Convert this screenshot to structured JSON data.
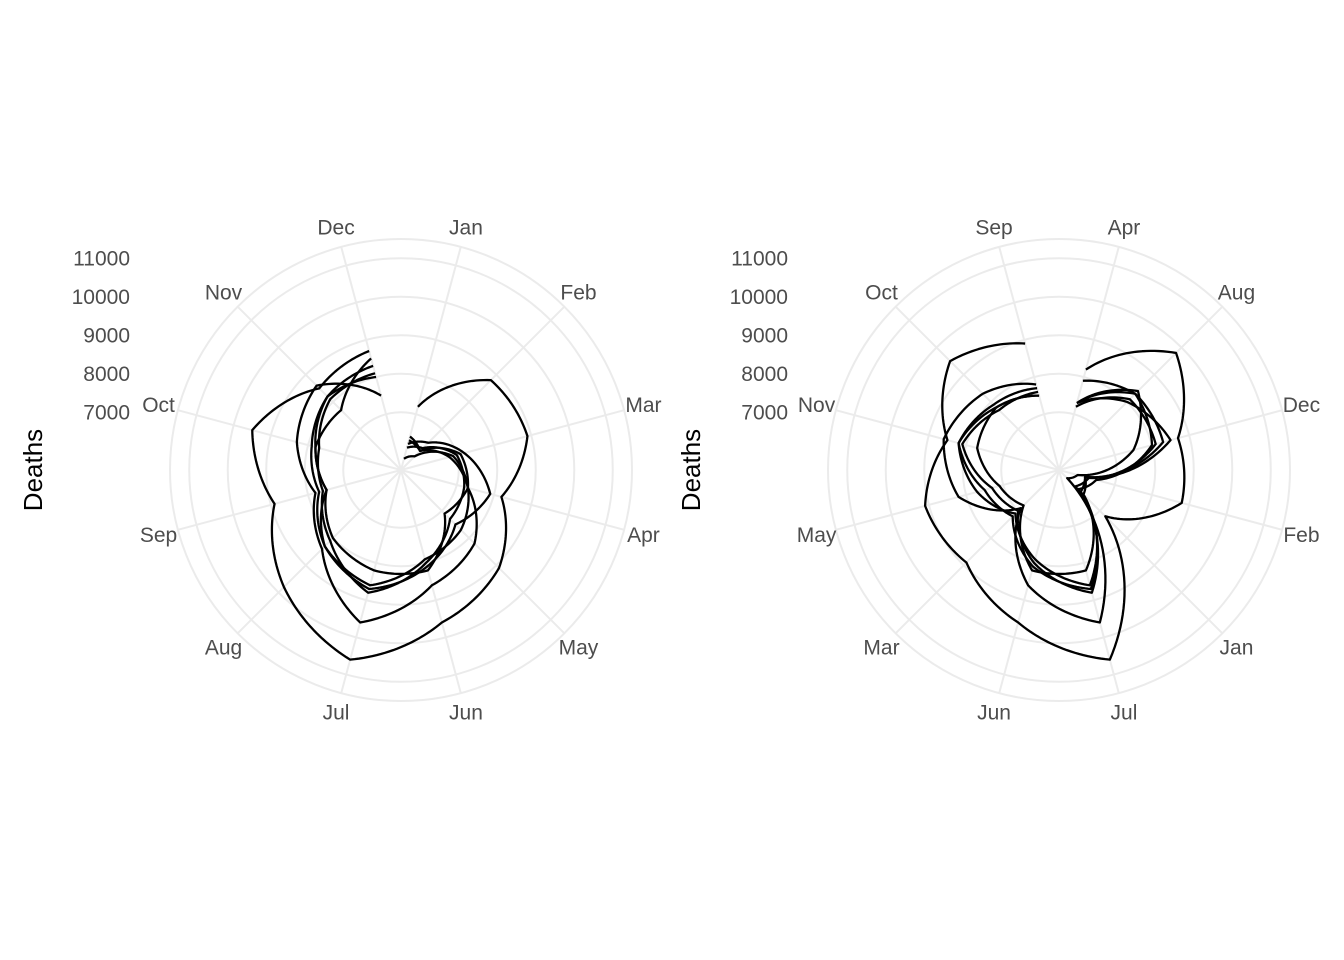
{
  "chart_data": [
    {
      "type": "line",
      "coord": "polar",
      "ylabel": "Deaths",
      "y_ticks": [
        7000,
        8000,
        9000,
        10000,
        11000
      ],
      "ylim": [
        5500,
        11500
      ],
      "theta_labels": [
        "Jan",
        "Feb",
        "Mar",
        "Apr",
        "May",
        "Jun",
        "Jul",
        "Aug",
        "Sep",
        "Oct",
        "Nov",
        "Dec"
      ],
      "grid": true,
      "series": [
        {
          "values": [
            5800,
            6000,
            6900,
            7300,
            8200,
            8600,
            9600,
            8400,
            7800,
            8300,
            8600,
            7500
          ]
        },
        {
          "values": [
            6200,
            6500,
            7200,
            7900,
            7500,
            8100,
            8700,
            8300,
            7500,
            7800,
            8200,
            8000
          ]
        },
        {
          "values": [
            6100,
            6300,
            7000,
            7200,
            7300,
            8000,
            8800,
            8100,
            7600,
            7700,
            8100,
            8100
          ]
        },
        {
          "values": [
            6300,
            6200,
            7100,
            7300,
            7700,
            7900,
            8600,
            8300,
            7700,
            7900,
            8200,
            8300
          ]
        },
        {
          "values": [
            6400,
            6200,
            6800,
            7300,
            7100,
            8200,
            8200,
            8000,
            7500,
            7800,
            7700,
            8500
          ]
        },
        {
          "values": [
            7200,
            8800,
            8900,
            8200,
            9100,
            9600,
            10600,
            9800,
            8900,
            9500,
            8500,
            8700
          ]
        }
      ]
    },
    {
      "type": "line",
      "coord": "polar",
      "ylabel": "Deaths",
      "y_ticks": [
        7000,
        8000,
        9000,
        10000,
        11000
      ],
      "ylim": [
        5500,
        11500
      ],
      "theta_labels": [
        "Apr",
        "Aug",
        "Dec",
        "Feb",
        "Jan",
        "Jul",
        "Jun",
        "Mar",
        "May",
        "Nov",
        "Oct",
        "Sep"
      ],
      "grid": true,
      "series": [
        {
          "values": [
            7300,
            8400,
            7500,
            6000,
            5800,
            9600,
            8600,
            6900,
            8200,
            8600,
            8300,
            7800
          ]
        },
        {
          "values": [
            7900,
            8300,
            8000,
            6500,
            6200,
            8700,
            8100,
            7200,
            7500,
            8200,
            7800,
            7500
          ]
        },
        {
          "values": [
            7200,
            8100,
            8100,
            6300,
            6100,
            8800,
            8000,
            7000,
            7300,
            8100,
            7700,
            7600
          ]
        },
        {
          "values": [
            7300,
            8300,
            8300,
            6200,
            6300,
            8600,
            7900,
            7100,
            7700,
            8200,
            7900,
            7700
          ]
        },
        {
          "values": [
            7300,
            8000,
            8500,
            6200,
            6400,
            8200,
            8200,
            6800,
            7100,
            7700,
            7800,
            7500
          ]
        },
        {
          "values": [
            8200,
            9800,
            8700,
            8800,
            7200,
            10600,
            9600,
            8900,
            9100,
            8500,
            9500,
            8900
          ]
        }
      ]
    }
  ]
}
